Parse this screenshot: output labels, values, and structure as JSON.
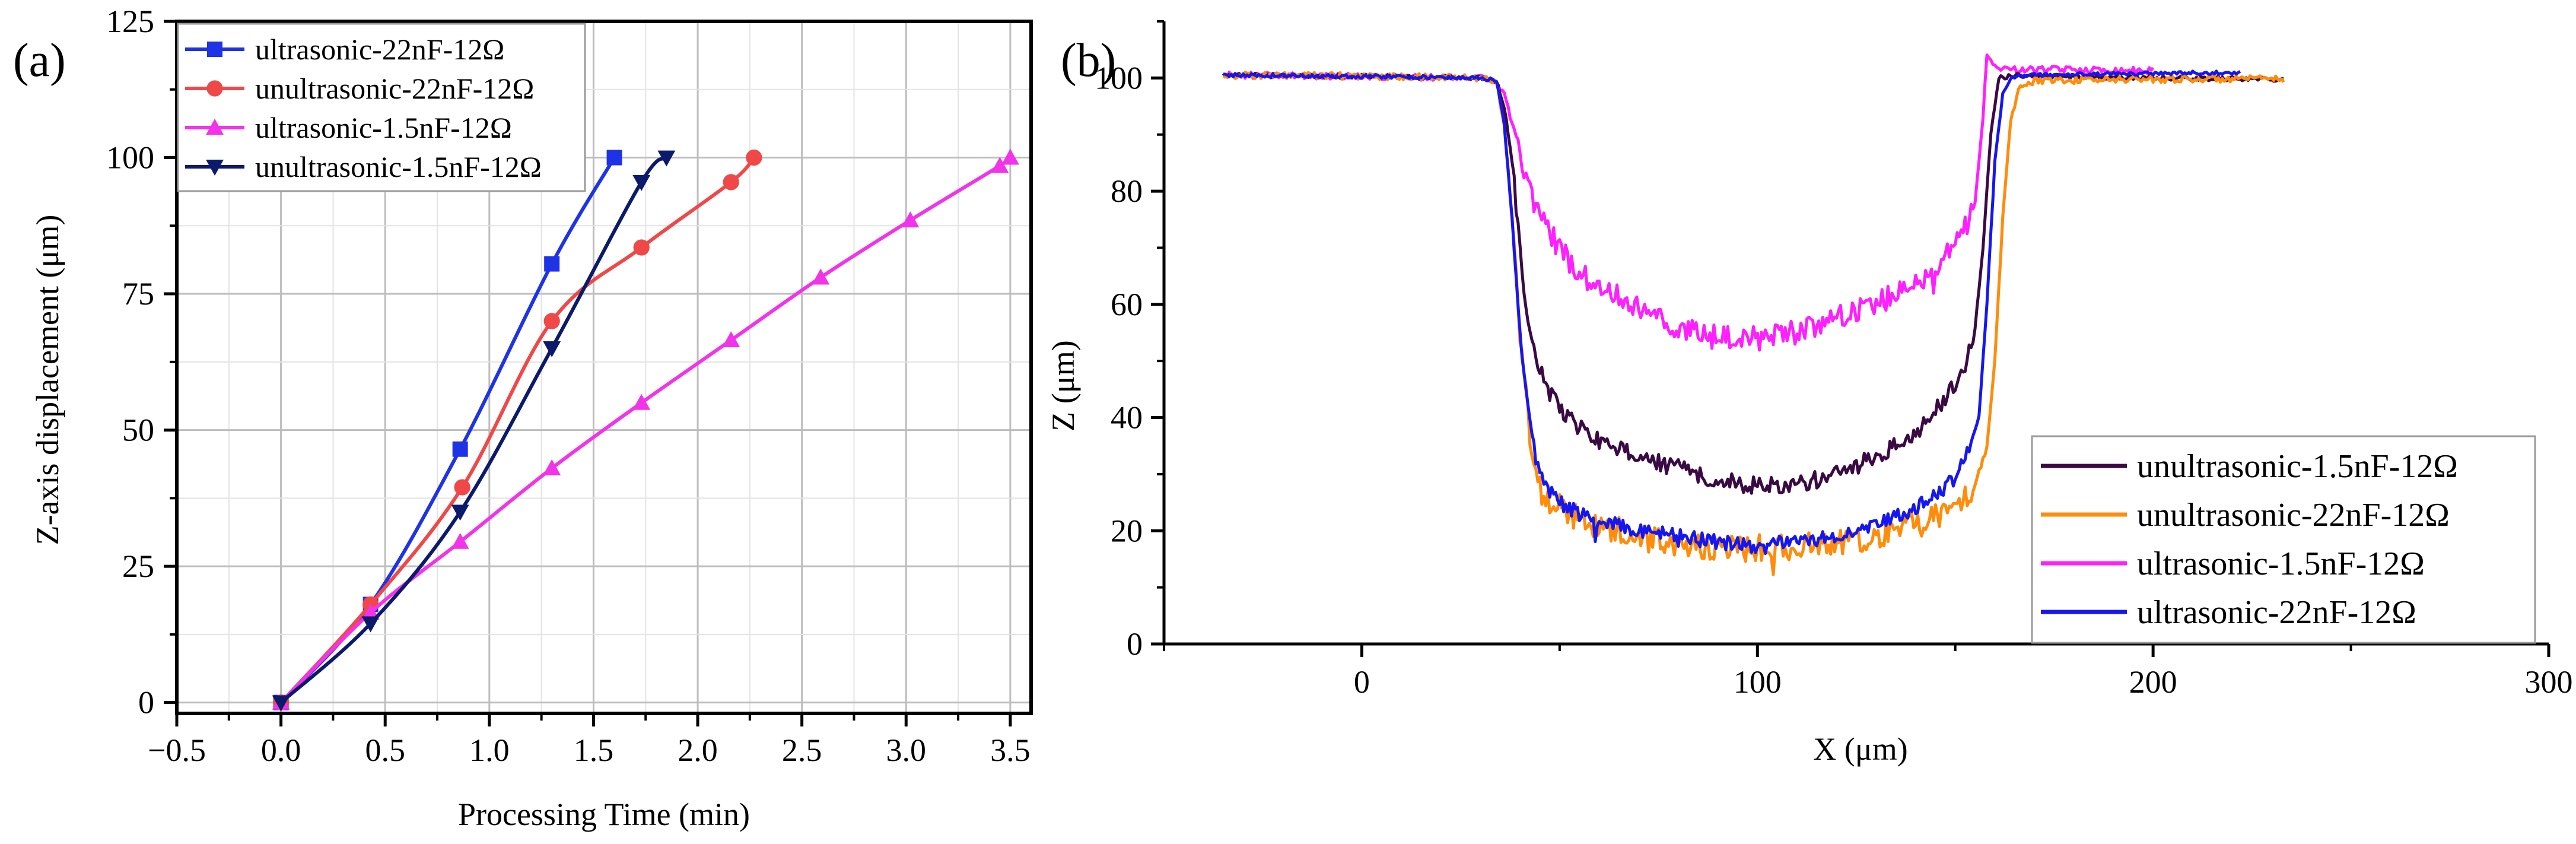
{
  "chart_data": [
    {
      "panel_label": "(a)",
      "type": "line",
      "xlabel": "Processing Time (min)",
      "ylabel": "Z-axis displacement (μm)",
      "xlim": [
        -0.5,
        3.6
      ],
      "ylim": [
        -2,
        125
      ],
      "xticks": [
        "−0.5",
        "0.0",
        "0.5",
        "1.0",
        "1.5",
        "2.0",
        "2.5",
        "3.0",
        "3.5"
      ],
      "xtick_values": [
        -0.5,
        0,
        0.5,
        1,
        1.5,
        2,
        2.5,
        3,
        3.5
      ],
      "yticks": [
        "0",
        "25",
        "50",
        "75",
        "100",
        "125"
      ],
      "ytick_values": [
        0,
        25,
        50,
        75,
        100,
        125
      ],
      "grid": true,
      "legend_position": "top-left",
      "series": [
        {
          "name": "ultrasonic-22nF-12Ω",
          "color": "#1f33e6",
          "marker": "square",
          "x": [
            0,
            0.43,
            0.86,
            1.3,
            1.6
          ],
          "y": [
            0,
            18,
            46.5,
            80.5,
            100
          ]
        },
        {
          "name": "unultrasonic-22nF-12Ω",
          "color": "#f04848",
          "marker": "circle",
          "x": [
            0,
            0.43,
            0.87,
            1.3,
            1.73,
            2.16,
            2.27
          ],
          "y": [
            0,
            18,
            39.5,
            70,
            83.5,
            95.5,
            100
          ]
        },
        {
          "name": "ultrasonic-1.5nF-12Ω",
          "color": "#f233ea",
          "marker": "triangle-up",
          "x": [
            0,
            0.43,
            0.86,
            1.3,
            1.73,
            2.16,
            2.59,
            3.02,
            3.45,
            3.5
          ],
          "y": [
            0,
            16.5,
            29.5,
            43,
            55,
            66.5,
            78,
            88.5,
            98.5,
            100
          ]
        },
        {
          "name": "unultrasonic-1.5nF-12Ω",
          "color": "#0b1a6b",
          "marker": "triangle-down",
          "x": [
            0,
            0.43,
            0.86,
            1.3,
            1.73,
            1.85
          ],
          "y": [
            0,
            14.5,
            35,
            65,
            95.5,
            100
          ]
        }
      ]
    },
    {
      "panel_label": "(b)",
      "type": "line",
      "xlabel": "X (μm)",
      "ylabel": "Z (μm)",
      "xlim": [
        -50,
        300
      ],
      "ylim": [
        0,
        110
      ],
      "xticks": [
        "0",
        "100",
        "200",
        "300"
      ],
      "xtick_values": [
        0,
        100,
        200,
        300
      ],
      "yticks": [
        "0",
        "20",
        "40",
        "60",
        "80",
        "100"
      ],
      "ytick_values": [
        0,
        20,
        40,
        60,
        80,
        100
      ],
      "grid": false,
      "legend_position": "bottom-right",
      "series": [
        {
          "name": "unultrasonic-1.5nF-12Ω",
          "color": "#3a0a45",
          "noise": 1.6,
          "x": [
            -35,
            0,
            30,
            34,
            36,
            38,
            40,
            42,
            44,
            47,
            50,
            55,
            60,
            70,
            80,
            90,
            100,
            110,
            120,
            130,
            140,
            146,
            150,
            153,
            155,
            157,
            159,
            161,
            165,
            180,
            200,
            233
          ],
          "y": [
            100.5,
            100.3,
            100,
            99.5,
            95,
            85,
            70,
            57,
            50,
            45,
            42,
            38,
            36,
            33,
            31,
            29,
            28,
            28,
            30,
            33,
            37,
            42,
            46,
            50,
            56,
            70,
            90,
            100,
            100.5,
            100.2,
            100,
            99.8
          ]
        },
        {
          "name": "unultrasonic-22nF-12Ω",
          "color": "#ff8c0a",
          "noise": 2.4,
          "x": [
            -35,
            0,
            30,
            34,
            36,
            38,
            40,
            42,
            44,
            46,
            50,
            55,
            60,
            70,
            80,
            90,
            100,
            110,
            120,
            130,
            140,
            150,
            155,
            158,
            160,
            162,
            164,
            166,
            170,
            200,
            233
          ],
          "y": [
            100.5,
            100.3,
            100,
            99.5,
            92,
            75,
            55,
            40,
            30,
            26,
            24,
            22,
            21,
            19,
            17,
            17,
            17,
            17,
            18,
            19,
            21,
            24,
            28,
            35,
            50,
            75,
            92,
            98.5,
            99.5,
            99.8,
            99.8
          ]
        },
        {
          "name": "ultrasonic-1.5nF-12Ω",
          "color": "#ff1fff",
          "noise": 2.2,
          "x": [
            -35,
            0,
            30,
            34,
            36,
            38,
            40,
            42,
            44,
            48,
            52,
            56,
            62,
            70,
            80,
            90,
            100,
            110,
            120,
            130,
            140,
            146,
            150,
            153,
            155,
            157,
            158,
            160,
            165,
            180,
            200
          ],
          "y": [
            100.5,
            100.3,
            100,
            99.5,
            97,
            92,
            87,
            82,
            77,
            72,
            68,
            65,
            62,
            59,
            56,
            54,
            54,
            55,
            58,
            60,
            64,
            67,
            70,
            74,
            78,
            93,
            104,
            102,
            101.5,
            101.5,
            101.3
          ]
        },
        {
          "name": "ultrasonic-22nF-12Ω",
          "color": "#1616f0",
          "noise": 1.3,
          "x": [
            -35,
            0,
            30,
            34,
            36,
            38,
            40,
            42,
            44,
            46,
            50,
            55,
            60,
            70,
            80,
            90,
            100,
            110,
            120,
            130,
            140,
            148,
            152,
            156,
            158,
            160,
            162,
            164,
            168,
            200,
            222
          ],
          "y": [
            100.5,
            100.3,
            100,
            99.5,
            92,
            75,
            55,
            42,
            33,
            28,
            25,
            23,
            22,
            20,
            19,
            18,
            17,
            18,
            19,
            21,
            24,
            28,
            32,
            40,
            60,
            85,
            97,
            100,
            100.5,
            100.8,
            101
          ]
        }
      ]
    }
  ]
}
